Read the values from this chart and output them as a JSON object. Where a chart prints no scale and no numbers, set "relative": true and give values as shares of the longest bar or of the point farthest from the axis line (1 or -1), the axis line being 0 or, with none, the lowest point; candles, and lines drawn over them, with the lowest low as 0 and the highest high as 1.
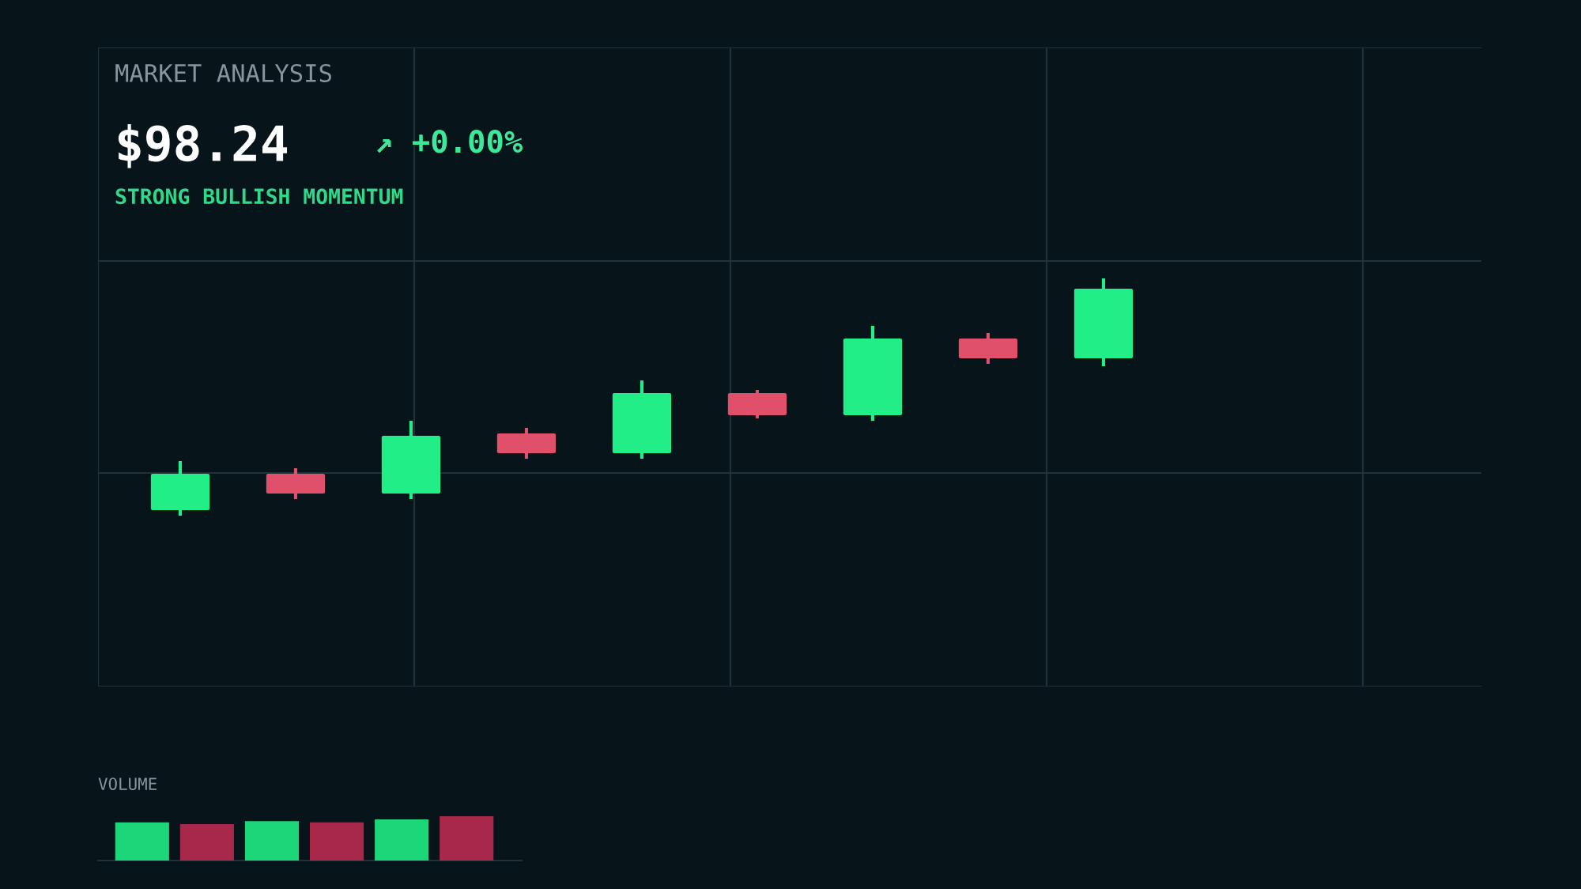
{
  "chart_data": [
    {
      "type": "candlestick",
      "title": "MARKET ANALYSIS",
      "annotations": [
        "$98.24",
        "↗ +0.00%",
        "STRONG BULLISH MOMENTUM"
      ],
      "relative": true,
      "grid": true,
      "categories": [
        null,
        null,
        null,
        null,
        null,
        null,
        null,
        null,
        null
      ],
      "ohlc": [
        [
          0.03,
          0.23,
          0.0,
          0.17
        ],
        [
          0.17,
          0.2,
          0.07,
          0.1
        ],
        [
          0.1,
          0.4,
          0.07,
          0.33
        ],
        [
          0.34,
          0.37,
          0.24,
          0.27
        ],
        [
          0.27,
          0.57,
          0.24,
          0.51
        ],
        [
          0.51,
          0.53,
          0.41,
          0.43
        ],
        [
          0.43,
          0.8,
          0.4,
          0.74
        ],
        [
          0.74,
          0.77,
          0.64,
          0.67
        ],
        [
          0.67,
          1.0,
          0.63,
          0.95
        ]
      ],
      "colors": [
        "#22ee88",
        "#e0506a",
        "#22ee88",
        "#e0506a",
        "#22ee88",
        "#e0506a",
        "#22ee88",
        "#e0506a",
        "#22ee88"
      ]
    },
    {
      "type": "bar",
      "title": "VOLUME",
      "relative": true,
      "categories": [
        null,
        null,
        null,
        null,
        null,
        null
      ],
      "values": [
        0.86,
        0.82,
        0.89,
        0.86,
        0.93,
        1.0
      ],
      "colors": [
        "#1ed67a",
        "#a8284a",
        "#1ed67a",
        "#a8284a",
        "#1ed67a",
        "#a8284a"
      ]
    }
  ]
}
